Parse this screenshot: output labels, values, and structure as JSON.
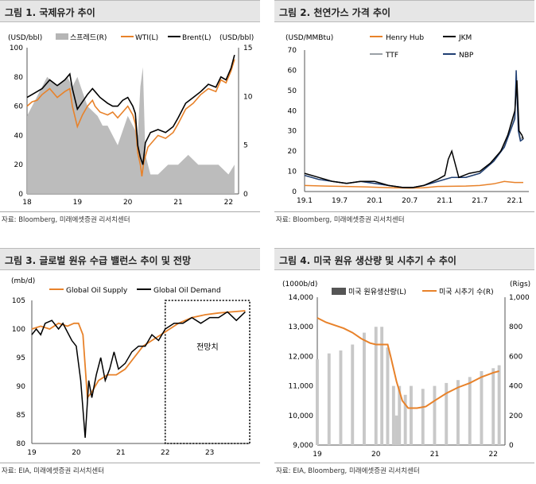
{
  "chart_data": [
    {
      "type": "line",
      "title": "그림 1. 국제유가 추이",
      "y_left_unit": "(USD/bbl)",
      "y_right_unit": "(USD/bbl)",
      "y_left_ticks": [
        "100",
        "80",
        "60",
        "40",
        "20",
        "0"
      ],
      "y_right_ticks": [
        "15",
        "10",
        "5",
        "0"
      ],
      "x_ticks": [
        "18",
        "19",
        "20",
        "21",
        "22"
      ],
      "ylim": [
        0,
        100
      ],
      "y2lim": [
        0,
        15
      ],
      "legend": [
        "스프레드(R)",
        "WTI(L)",
        "Brent(L)"
      ],
      "series": [
        {
          "name": "Brent(L)",
          "color": "#000000",
          "x": [
            18.0,
            18.1,
            18.2,
            18.3,
            18.45,
            18.6,
            18.75,
            18.85,
            18.9,
            19.0,
            19.1,
            19.2,
            19.3,
            19.35,
            19.45,
            19.6,
            19.7,
            19.8,
            19.9,
            20.0,
            20.1,
            20.15,
            20.2,
            20.25,
            20.3,
            20.35,
            20.45,
            20.6,
            20.75,
            20.9,
            21.0,
            21.15,
            21.3,
            21.45,
            21.6,
            21.75,
            21.85,
            21.95,
            22.05,
            22.12
          ],
          "values": [
            66,
            68,
            70,
            72,
            78,
            74,
            78,
            82,
            72,
            58,
            63,
            68,
            72,
            70,
            66,
            62,
            60,
            60,
            64,
            66,
            60,
            55,
            33,
            25,
            20,
            35,
            42,
            44,
            42,
            46,
            52,
            62,
            66,
            70,
            75,
            73,
            80,
            78,
            86,
            95
          ]
        },
        {
          "name": "WTI(L)",
          "color": "#e8822a",
          "x": [
            18.0,
            18.1,
            18.2,
            18.3,
            18.45,
            18.6,
            18.75,
            18.85,
            18.9,
            19.0,
            19.1,
            19.2,
            19.3,
            19.35,
            19.45,
            19.6,
            19.7,
            19.8,
            19.9,
            20.0,
            20.1,
            20.15,
            20.2,
            20.25,
            20.28,
            20.32,
            20.4,
            20.6,
            20.75,
            20.9,
            21.0,
            21.15,
            21.3,
            21.45,
            21.6,
            21.75,
            21.85,
            21.95,
            22.05,
            22.12
          ],
          "values": [
            60,
            63,
            64,
            68,
            72,
            66,
            70,
            72,
            60,
            46,
            54,
            60,
            64,
            60,
            56,
            54,
            56,
            52,
            56,
            60,
            54,
            48,
            28,
            20,
            12,
            22,
            32,
            40,
            38,
            42,
            48,
            58,
            62,
            68,
            72,
            70,
            78,
            76,
            84,
            92
          ]
        },
        {
          "name": "스프레드(R)",
          "color": "#b5b5b5",
          "axis": "right",
          "x": [
            18.0,
            18.2,
            18.4,
            18.6,
            18.8,
            18.9,
            19.0,
            19.2,
            19.4,
            19.5,
            19.6,
            19.8,
            20.0,
            20.2,
            20.25,
            20.3,
            20.35,
            20.45,
            20.6,
            20.8,
            21.0,
            21.2,
            21.4,
            21.6,
            21.8,
            22.0,
            22.12
          ],
          "values": [
            8,
            10,
            12,
            11,
            12,
            11,
            12,
            9,
            8,
            7,
            7,
            5,
            8,
            6,
            11,
            13,
            4,
            2,
            2,
            3,
            3,
            4,
            3,
            3,
            3,
            2,
            3
          ]
        }
      ]
    },
    {
      "type": "line",
      "title": "그림 2. 천연가스 가격 추이",
      "y_unit": "(USD/MMBtu)",
      "y_ticks": [
        "70",
        "60",
        "50",
        "40",
        "30",
        "20",
        "10",
        "0"
      ],
      "x_ticks": [
        "19.1",
        "19.7",
        "20.1",
        "20.7",
        "21.1",
        "21.7",
        "22.1"
      ],
      "ylim": [
        0,
        70
      ],
      "legend": [
        "Henry Hub",
        "JKM",
        "TTF",
        "NBP"
      ],
      "series": [
        {
          "name": "Henry Hub",
          "color": "#e8822a",
          "x": [
            19.0,
            19.3,
            19.6,
            19.9,
            20.1,
            20.3,
            20.5,
            20.7,
            20.9,
            21.1,
            21.3,
            21.5,
            21.7,
            21.85,
            22.0,
            22.12
          ],
          "values": [
            3,
            2.7,
            2.5,
            2.3,
            2,
            1.8,
            1.7,
            1.9,
            2.5,
            2.6,
            2.7,
            3,
            3.8,
            5,
            4.5,
            4.5
          ]
        },
        {
          "name": "JKM",
          "color": "#000000",
          "x": [
            19.0,
            19.2,
            19.4,
            19.6,
            19.8,
            20.0,
            20.2,
            20.4,
            20.55,
            20.7,
            20.9,
            21.0,
            21.05,
            21.1,
            21.2,
            21.35,
            21.5,
            21.65,
            21.8,
            21.9,
            22.0,
            22.03,
            22.06,
            22.1,
            22.12
          ],
          "values": [
            9,
            7,
            5,
            4,
            5,
            5,
            3,
            2,
            2,
            3,
            6,
            8,
            16,
            20,
            7,
            9,
            10,
            14,
            20,
            28,
            40,
            55,
            30,
            28,
            26
          ]
        },
        {
          "name": "TTF",
          "color": "#9aa0a6",
          "x": [
            19.0,
            19.2,
            19.4,
            19.6,
            19.8,
            20.0,
            20.2,
            20.4,
            20.55,
            20.7,
            20.9,
            21.0,
            21.1,
            21.3,
            21.5,
            21.7,
            21.85,
            22.0,
            22.02,
            22.05,
            22.08,
            22.12
          ],
          "values": [
            8,
            6,
            5,
            4,
            5,
            4,
            3,
            2,
            2,
            3,
            5,
            6,
            7,
            7,
            9,
            15,
            23,
            38,
            56,
            32,
            26,
            27
          ]
        },
        {
          "name": "NBP",
          "color": "#1f3e72",
          "x": [
            19.0,
            19.2,
            19.4,
            19.6,
            19.8,
            20.0,
            20.2,
            20.4,
            20.55,
            20.7,
            20.9,
            21.0,
            21.1,
            21.3,
            21.5,
            21.7,
            21.85,
            22.0,
            22.02,
            22.05,
            22.08,
            22.12
          ],
          "values": [
            8,
            6,
            5,
            4,
            5,
            4,
            3,
            2,
            2,
            3,
            5,
            6,
            7,
            7,
            9,
            15,
            22,
            36,
            60,
            30,
            25,
            26
          ]
        }
      ]
    },
    {
      "type": "line",
      "title": "그림 3. 글로벌 원유 수급 밸런스 추이 및 전망",
      "y_unit": "(mb/d)",
      "y_ticks": [
        "105",
        "100",
        "95",
        "90",
        "85",
        "80"
      ],
      "x_ticks": [
        "19",
        "20",
        "21",
        "22",
        "23"
      ],
      "ylim": [
        80,
        105
      ],
      "legend": [
        "Global Oil Supply",
        "Global Oil Demand"
      ],
      "forecast_label": "전망치",
      "series": [
        {
          "name": "Global Oil Supply",
          "color": "#e8822a",
          "x": [
            19.0,
            19.2,
            19.4,
            19.6,
            19.8,
            19.95,
            20.05,
            20.15,
            20.25,
            20.35,
            20.5,
            20.7,
            20.9,
            21.1,
            21.3,
            21.5,
            21.7,
            21.9,
            22.1,
            22.3,
            22.6,
            22.9,
            23.2,
            23.5,
            23.8
          ],
          "values": [
            100,
            100.5,
            100,
            101,
            100.5,
            101,
            101,
            99,
            88,
            89,
            91,
            92,
            92,
            93,
            95,
            97,
            98,
            99,
            100,
            101,
            102,
            102.5,
            102.8,
            103,
            103.2
          ]
        },
        {
          "name": "Global Oil Demand",
          "color": "#000000",
          "x": [
            19.0,
            19.1,
            19.2,
            19.3,
            19.45,
            19.6,
            19.7,
            19.8,
            19.9,
            20.0,
            20.1,
            20.2,
            20.28,
            20.35,
            20.45,
            20.55,
            20.65,
            20.75,
            20.85,
            20.95,
            21.1,
            21.25,
            21.4,
            21.55,
            21.7,
            21.85,
            22.0,
            22.2,
            22.4,
            22.6,
            22.8,
            23.0,
            23.2,
            23.4,
            23.6,
            23.8
          ],
          "values": [
            99,
            100,
            99,
            101,
            101.5,
            100,
            101,
            99.5,
            98,
            97,
            91,
            81,
            91,
            88,
            92,
            95,
            91,
            93,
            96,
            93,
            94,
            96,
            97,
            97,
            99,
            98,
            100,
            101,
            101,
            102,
            101,
            102,
            102,
            103,
            101.5,
            103
          ]
        }
      ]
    },
    {
      "type": "bar",
      "title": "그림 4. 미국 원유 생산량 및 시추기 수 추이",
      "y_left_unit": "(1000b/d)",
      "y_right_unit": "(Rigs)",
      "y_left_ticks": [
        "14,000",
        "13,000",
        "12,000",
        "11,000",
        "10,000",
        "9,000"
      ],
      "y_right_ticks": [
        "1,000",
        "800",
        "600",
        "400",
        "200",
        "0"
      ],
      "x_ticks": [
        "19",
        "20",
        "21",
        "22"
      ],
      "ylim": [
        9000,
        14000
      ],
      "y2lim": [
        0,
        1000
      ],
      "legend": [
        "미국 원유생산량(L)",
        "미국 시추기 수(R)"
      ],
      "series": [
        {
          "name": "미국 원유생산량(L)",
          "color": "#c8c8c8",
          "type": "bar",
          "x": [
            19.0,
            19.2,
            19.4,
            19.6,
            19.8,
            20.0,
            20.1,
            20.2,
            20.3,
            20.35,
            20.4,
            20.5,
            20.6,
            20.8,
            21.0,
            21.2,
            21.4,
            21.6,
            21.8,
            22.0,
            22.1
          ],
          "values": [
            11900,
            12100,
            12200,
            12400,
            12800,
            13000,
            13000,
            12300,
            11000,
            10000,
            11000,
            10700,
            11000,
            10900,
            11000,
            11100,
            11200,
            11300,
            11500,
            11600,
            11700
          ]
        },
        {
          "name": "미국 시추기 수(R)",
          "color": "#e8822a",
          "axis": "right",
          "x": [
            19.0,
            19.15,
            19.3,
            19.45,
            19.6,
            19.75,
            19.9,
            20.0,
            20.1,
            20.2,
            20.25,
            20.35,
            20.45,
            20.55,
            20.7,
            20.85,
            21.0,
            21.2,
            21.4,
            21.6,
            21.8,
            22.0,
            22.1
          ],
          "values": [
            860,
            830,
            810,
            790,
            760,
            720,
            690,
            680,
            680,
            680,
            600,
            430,
            300,
            250,
            250,
            260,
            300,
            350,
            390,
            420,
            460,
            490,
            500
          ]
        }
      ]
    }
  ],
  "sources": [
    "자료: Bloomberg, 미래에셋증권 리서치센터",
    "자료: Bloomberg, 미래에셋증권 리서치센터",
    "자료: EIA, 미래에셋증권 리서치센터",
    "자료: EIA, Bloomberg, 미래에셋증권 리서치센터"
  ]
}
